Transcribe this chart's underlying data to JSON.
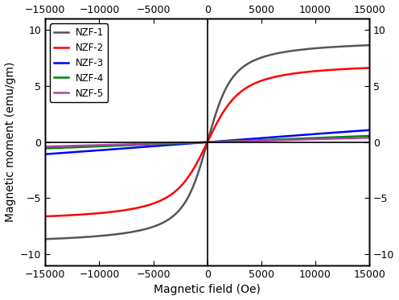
{
  "xlabel": "Magnetic field (Oe)",
  "ylabel": "Magnetic moment (emu/gm)",
  "xlim": [
    -15000,
    15000
  ],
  "ylim": [
    -11,
    11
  ],
  "yticks": [
    -10,
    -5,
    0,
    5,
    10
  ],
  "xticks": [
    -15000,
    -10000,
    -5000,
    0,
    5000,
    10000,
    15000
  ],
  "series": [
    {
      "label": "NZF-1",
      "color": "#555555",
      "Ms": 9.2,
      "a": 900,
      "type": "langevin"
    },
    {
      "label": "NZF-2",
      "color": "#ff0000",
      "Ms": 7.2,
      "a": 1200,
      "type": "langevin"
    },
    {
      "label": "NZF-3",
      "color": "#0000ff",
      "Ms": 5.5,
      "a": 25000,
      "type": "langevin"
    },
    {
      "label": "NZF-4",
      "color": "#008800",
      "Ms": 3.2,
      "a": 28000,
      "type": "langevin"
    },
    {
      "label": "NZF-5",
      "color": "#aa44aa",
      "Ms": 2.4,
      "a": 30000,
      "type": "langevin"
    }
  ],
  "background_color": "#ffffff",
  "line_width": 1.8,
  "legend_fontsize": 8.5,
  "axis_fontsize": 10,
  "tick_fontsize": 9
}
